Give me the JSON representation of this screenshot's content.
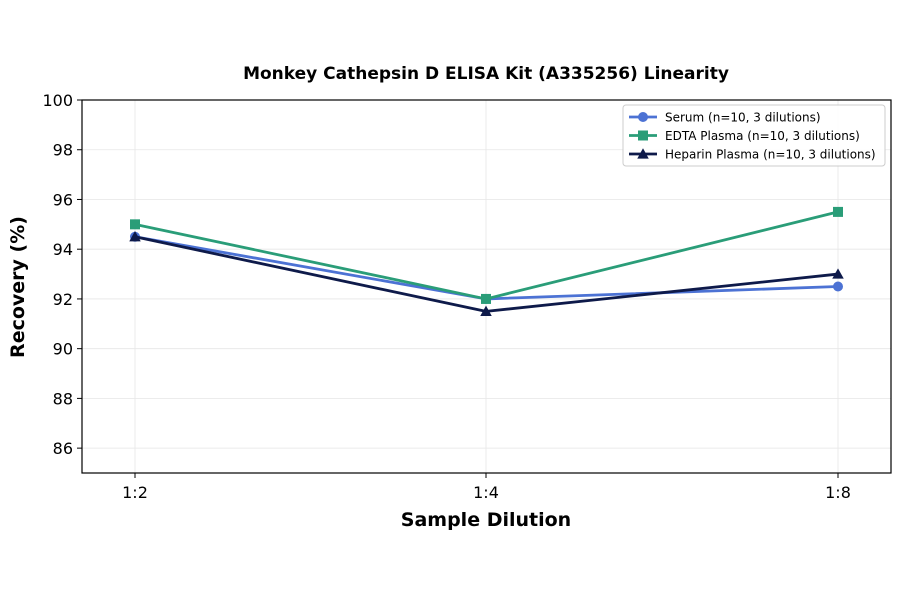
{
  "chart_data": {
    "type": "line",
    "title": "Monkey Cathepsin D ELISA Kit (A335256) Linearity",
    "xlabel": "Sample Dilution",
    "ylabel": "Recovery (%)",
    "categories": [
      "1:2",
      "1:4",
      "1:8"
    ],
    "ylim": [
      85,
      100
    ],
    "yticks": [
      86,
      88,
      90,
      92,
      94,
      96,
      98,
      100
    ],
    "grid": true,
    "legend_position": "top-right",
    "series": [
      {
        "name": "Serum (n=10, 3 dilutions)",
        "values": [
          94.5,
          92.0,
          92.5
        ],
        "color": "#4c72d4",
        "marker": "circle"
      },
      {
        "name": "EDTA Plasma (n=10, 3 dilutions)",
        "values": [
          95.0,
          92.0,
          95.5
        ],
        "color": "#2a9d78",
        "marker": "square"
      },
      {
        "name": "Heparin Plasma (n=10, 3 dilutions)",
        "values": [
          94.5,
          91.5,
          93.0
        ],
        "color": "#0e1a4a",
        "marker": "triangle"
      }
    ]
  }
}
